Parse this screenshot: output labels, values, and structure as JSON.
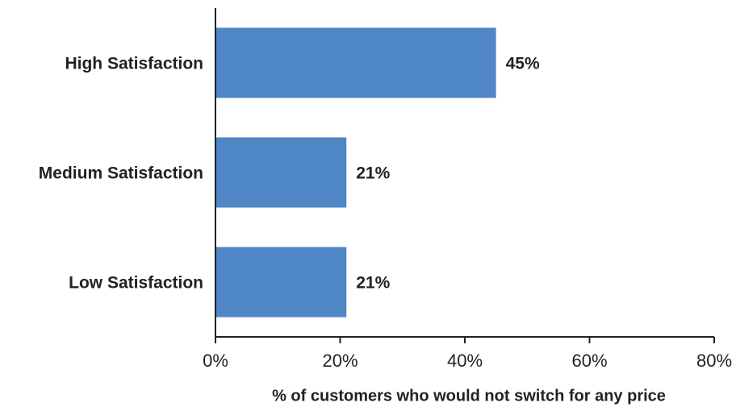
{
  "chart_data": {
    "type": "hbar",
    "categories": [
      "High Satisfaction",
      "Medium Satisfaction",
      "Low Satisfaction"
    ],
    "values": [
      45,
      21,
      21
    ],
    "value_labels": [
      "45%",
      "21%",
      "21%"
    ],
    "color": "#4f86c6",
    "xlabel": "% of customers who would not switch for any price",
    "xlim": [
      0,
      80
    ],
    "xticks": [
      {
        "value": 0,
        "label": "0%"
      },
      {
        "value": 20,
        "label": "20%"
      },
      {
        "value": 40,
        "label": "40%"
      },
      {
        "value": 60,
        "label": "60%"
      },
      {
        "value": 80,
        "label": "80%"
      }
    ],
    "grid": false
  }
}
